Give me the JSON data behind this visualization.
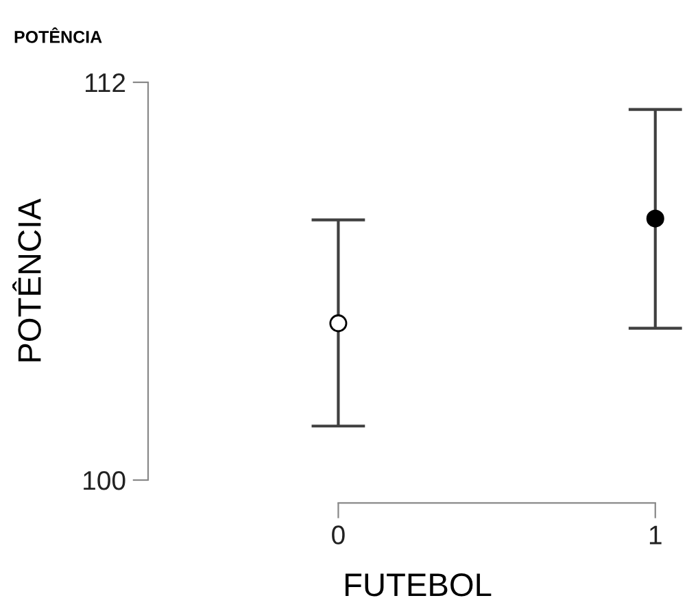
{
  "chart_data": {
    "type": "scatter",
    "title": "POTÊNCIA",
    "xlabel": "FUTEBOL",
    "ylabel": "POTÊNCIA",
    "categories": [
      "0",
      "1"
    ],
    "values": [
      104.73,
      107.89
    ],
    "colors": [
      "#ffffff",
      "#000000"
    ],
    "errors": [
      [
        101.63,
        107.85
      ],
      [
        104.58,
        111.18
      ]
    ],
    "ylim": [
      100,
      112
    ],
    "yticks": [
      100,
      112
    ],
    "marker": "circle",
    "grid": false,
    "legend": false
  }
}
